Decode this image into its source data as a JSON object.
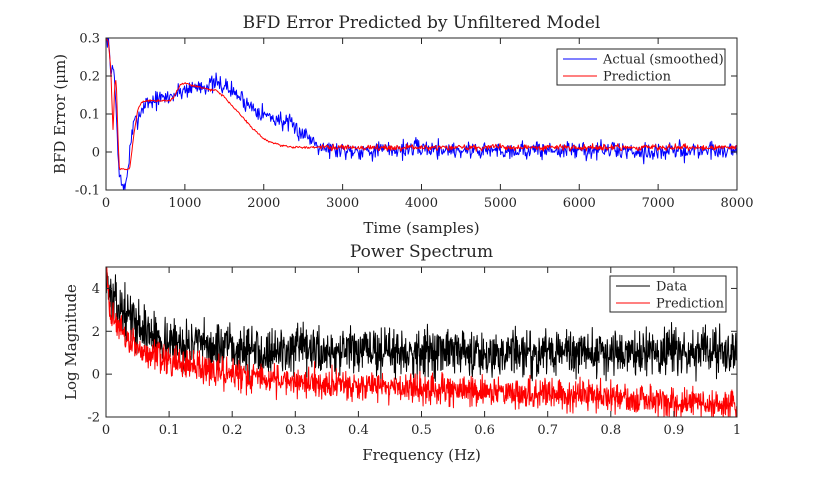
{
  "chart_data": [
    {
      "type": "line",
      "title": "BFD Error Predicted by Unfiltered Model",
      "xlabel": "Time (samples)",
      "ylabel": "BFD Error (μm)",
      "xlim": [
        0,
        8000
      ],
      "ylim": [
        -0.1,
        0.3
      ],
      "xticks": [
        0,
        1000,
        2000,
        3000,
        4000,
        5000,
        6000,
        7000,
        8000
      ],
      "yticks": [
        -0.1,
        0,
        0.1,
        0.2,
        0.3
      ],
      "xtick_labels": [
        "0",
        "1000",
        "2000",
        "3000",
        "4000",
        "5000",
        "6000",
        "7000",
        "8000"
      ],
      "ytick_labels": [
        "-0.1",
        "0",
        "0.1",
        "0.2",
        "0.3"
      ],
      "grid": false,
      "legend": "top-right",
      "series": [
        {
          "name": "Actual (smoothed)",
          "color": "#0000ff",
          "noise": 0.012,
          "x": [
            0,
            30,
            60,
            90,
            120,
            150,
            180,
            210,
            240,
            270,
            300,
            350,
            400,
            450,
            500,
            600,
            700,
            800,
            900,
            1000,
            1100,
            1200,
            1300,
            1400,
            1500,
            1600,
            1700,
            1800,
            1900,
            2000,
            2100,
            2200,
            2300,
            2400,
            2500,
            2600,
            2700,
            2800,
            3000,
            3500,
            4000,
            4500,
            5000,
            5500,
            6000,
            6500,
            7000,
            7500,
            8000
          ],
          "y": [
            0.3,
            0.3,
            0.2,
            0.24,
            0.15,
            0.0,
            -0.07,
            -0.1,
            -0.09,
            -0.06,
            0.0,
            0.07,
            0.09,
            0.11,
            0.13,
            0.135,
            0.14,
            0.145,
            0.155,
            0.165,
            0.17,
            0.175,
            0.175,
            0.18,
            0.175,
            0.16,
            0.145,
            0.125,
            0.115,
            0.1,
            0.09,
            0.085,
            0.075,
            0.06,
            0.05,
            0.035,
            0.02,
            0.01,
            0.005,
            0.005,
            0.01,
            0.005,
            0.005,
            0.005,
            0.005,
            0.005,
            0.0,
            0.005,
            0.005
          ]
        },
        {
          "name": "Prediction",
          "color": "#ff0000",
          "noise": 0.004,
          "noise_after": 2700,
          "x": [
            0,
            30,
            60,
            90,
            110,
            130,
            150,
            170,
            200,
            250,
            300,
            350,
            400,
            450,
            500,
            600,
            700,
            800,
            850,
            900,
            950,
            1000,
            1100,
            1200,
            1300,
            1400,
            1500,
            1600,
            1700,
            1800,
            1900,
            2000,
            2100,
            2200,
            2300,
            2400,
            2500,
            2600,
            2700,
            3000,
            3500,
            4000,
            4500,
            5000,
            5500,
            6000,
            6500,
            7000,
            7500,
            8000
          ],
          "y": [
            0.3,
            0.29,
            0.22,
            0.05,
            0.18,
            0.19,
            0.05,
            -0.045,
            -0.045,
            -0.045,
            -0.045,
            0.04,
            0.11,
            0.13,
            0.135,
            0.135,
            0.135,
            0.135,
            0.14,
            0.16,
            0.18,
            0.18,
            0.175,
            0.17,
            0.165,
            0.16,
            0.145,
            0.12,
            0.1,
            0.075,
            0.055,
            0.035,
            0.025,
            0.018,
            0.015,
            0.013,
            0.012,
            0.012,
            0.012,
            0.012,
            0.012,
            0.012,
            0.012,
            0.012,
            0.012,
            0.012,
            0.012,
            0.012,
            0.012,
            0.012
          ]
        }
      ]
    },
    {
      "type": "line",
      "title": "Power Spectrum",
      "xlabel": "Frequency (Hz)",
      "ylabel": "Log Magnitude",
      "xlim": [
        0,
        1
      ],
      "ylim": [
        -2,
        5
      ],
      "xticks": [
        0,
        0.1,
        0.2,
        0.3,
        0.4,
        0.5,
        0.6,
        0.7,
        0.8,
        0.9,
        1
      ],
      "yticks": [
        -2,
        0,
        2,
        4
      ],
      "xtick_labels": [
        "0",
        "0.1",
        "0.2",
        "0.3",
        "0.4",
        "0.5",
        "0.6",
        "0.7",
        "0.8",
        "0.9",
        "1"
      ],
      "ytick_labels": [
        "-2",
        "0",
        "2",
        "4"
      ],
      "grid": false,
      "legend": "top-right",
      "series": [
        {
          "name": "Data",
          "color": "#000000",
          "noise": 0.55,
          "x": [
            0,
            0.005,
            0.01,
            0.02,
            0.03,
            0.05,
            0.08,
            0.1,
            0.15,
            0.2,
            0.3,
            0.4,
            0.5,
            0.6,
            0.7,
            0.8,
            0.9,
            1.0
          ],
          "y": [
            5.0,
            3.8,
            3.4,
            3.1,
            2.9,
            2.3,
            1.7,
            1.5,
            1.3,
            1.15,
            1.1,
            1.05,
            1.05,
            1.0,
            1.0,
            1.0,
            1.0,
            1.0
          ]
        },
        {
          "name": "Prediction",
          "color": "#ff0000",
          "noise": 0.35,
          "x": [
            0,
            0.005,
            0.01,
            0.02,
            0.03,
            0.05,
            0.08,
            0.1,
            0.15,
            0.2,
            0.25,
            0.3,
            0.4,
            0.5,
            0.6,
            0.7,
            0.8,
            0.9,
            1.0
          ],
          "y": [
            5.0,
            3.3,
            2.7,
            2.1,
            1.7,
            1.2,
            0.8,
            0.6,
            0.25,
            0.0,
            -0.2,
            -0.3,
            -0.5,
            -0.65,
            -0.8,
            -0.95,
            -1.1,
            -1.3,
            -1.5
          ]
        }
      ]
    }
  ]
}
